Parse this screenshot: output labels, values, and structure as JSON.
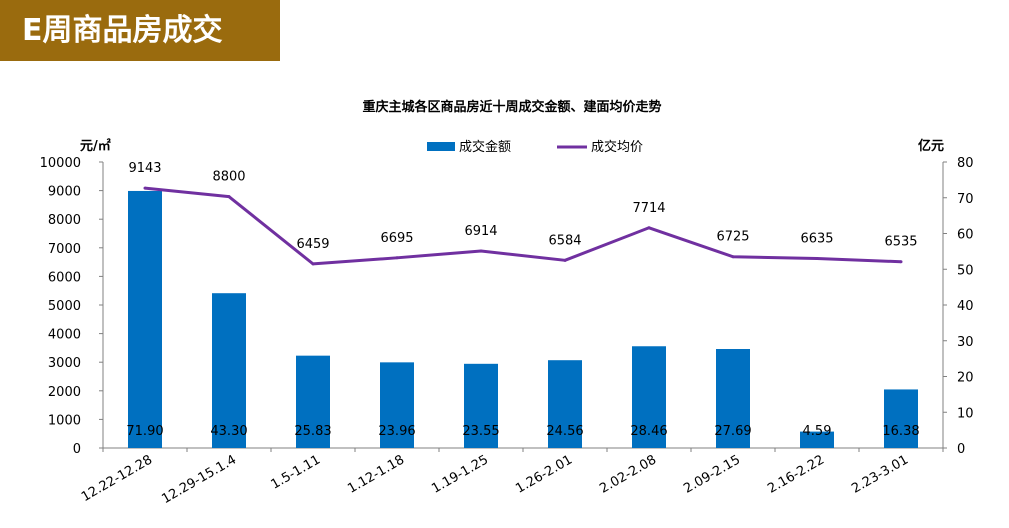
{
  "page": {
    "banner_title": "E周商品房成交"
  },
  "colors": {
    "banner": "#9A6B0E",
    "bar": "#0070C0",
    "line": "#7030A0"
  },
  "chart_data": {
    "type": "bar",
    "title": "重庆主城各区商品房近十周成交金额、建面均价走势",
    "categories": [
      "12.22-12.28",
      "12.29-15.1.4",
      "1.5-1.11",
      "1.12-1.18",
      "1.19-1.25",
      "1.26-2.01",
      "2.02-2.08",
      "2.09-2.15",
      "2.16-2.22",
      "2.23-3.01"
    ],
    "left_axis": {
      "label": "元/㎡",
      "min": 0,
      "max": 10000,
      "step": 1000
    },
    "right_axis": {
      "label": "亿元",
      "min": 0,
      "max": 80,
      "step": 10
    },
    "legend_position": "top-center",
    "grid": false,
    "series": [
      {
        "name": "成交金额",
        "type": "bar",
        "axis": "right",
        "values": [
          71.9,
          43.3,
          25.83,
          23.96,
          23.55,
          24.56,
          28.46,
          27.69,
          4.59,
          16.38
        ],
        "labels": [
          "71.90",
          "43.30",
          "25.83",
          "23.96",
          "23.55",
          "24.56",
          "28.46",
          "27.69",
          "4.59",
          "16.38"
        ]
      },
      {
        "name": "成交均价",
        "type": "line",
        "axis": "right",
        "values": [
          72.7,
          70.3,
          51.5,
          53.2,
          55.1,
          52.5,
          61.6,
          53.5,
          53.0,
          52.1
        ],
        "labels": [
          "9143",
          "8800",
          "6459",
          "6695",
          "6914",
          "6584",
          "7714",
          "6725",
          "6635",
          "6535"
        ]
      }
    ]
  }
}
